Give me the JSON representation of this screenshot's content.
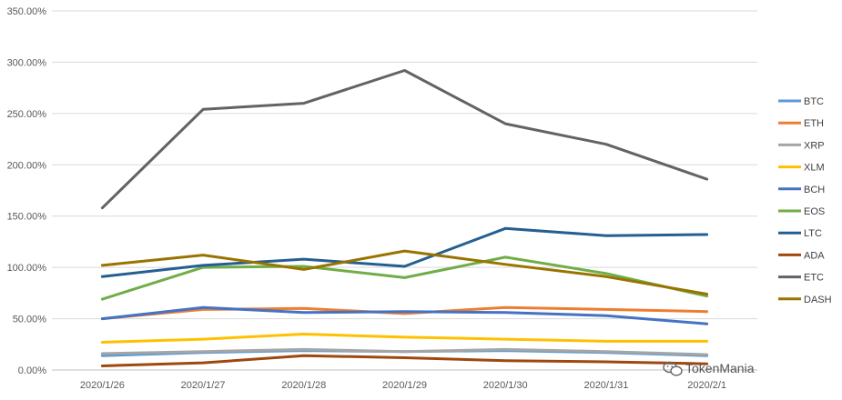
{
  "chart_data": {
    "type": "line",
    "title": "",
    "xlabel": "",
    "ylabel": "",
    "categories": [
      "2020/1/26",
      "2020/1/27",
      "2020/1/28",
      "2020/1/29",
      "2020/1/30",
      "2020/1/31",
      "2020/2/1"
    ],
    "y_ticks": [
      "0.00%",
      "50.00%",
      "100.00%",
      "150.00%",
      "200.00%",
      "250.00%",
      "300.00%",
      "350.00%"
    ],
    "ylim": [
      0,
      350
    ],
    "y_unit": "%",
    "grid": "horizontal",
    "legend_position": "right",
    "series": [
      {
        "name": "BTC",
        "color": "#5B9BD5",
        "values": [
          14,
          17,
          19,
          18,
          19,
          17,
          14
        ]
      },
      {
        "name": "ETH",
        "color": "#ED7D31",
        "values": [
          50,
          59,
          60,
          55,
          61,
          59,
          57
        ]
      },
      {
        "name": "XRP",
        "color": "#A5A5A5",
        "values": [
          16,
          18,
          20,
          18,
          20,
          18,
          15
        ]
      },
      {
        "name": "XLM",
        "color": "#FFC000",
        "values": [
          27,
          30,
          35,
          32,
          30,
          28,
          28
        ]
      },
      {
        "name": "BCH",
        "color": "#4472C4",
        "values": [
          50,
          61,
          56,
          57,
          56,
          53,
          45
        ]
      },
      {
        "name": "EOS",
        "color": "#70AD47",
        "values": [
          69,
          100,
          101,
          90,
          110,
          94,
          72
        ]
      },
      {
        "name": "LTC",
        "color": "#255E91",
        "values": [
          91,
          102,
          108,
          101,
          138,
          131,
          132
        ]
      },
      {
        "name": "ADA",
        "color": "#9E480E",
        "values": [
          4,
          7,
          14,
          12,
          9,
          8,
          6
        ]
      },
      {
        "name": "ETC",
        "color": "#636363",
        "values": [
          158,
          254,
          260,
          292,
          240,
          220,
          186
        ]
      },
      {
        "name": "DASH",
        "color": "#997300",
        "values": [
          102,
          112,
          98,
          116,
          103,
          91,
          74
        ]
      }
    ]
  },
  "watermark": {
    "text": "TokenMania",
    "icon": "wechat-icon"
  }
}
